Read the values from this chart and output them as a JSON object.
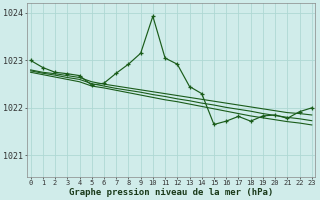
{
  "background_color": "#d0ecea",
  "grid_color": "#afd8d4",
  "line_color": "#1a5c1a",
  "ylabel_values": [
    1021,
    1022,
    1023,
    1024
  ],
  "xlabel_values": [
    0,
    1,
    2,
    3,
    4,
    5,
    6,
    7,
    8,
    9,
    10,
    11,
    12,
    13,
    14,
    15,
    16,
    17,
    18,
    19,
    20,
    21,
    22,
    23
  ],
  "xlabel_label": "Graphe pression niveau de la mer (hPa)",
  "ylim": [
    1020.55,
    1024.2
  ],
  "xlim": [
    -0.3,
    23.3
  ],
  "main_line": [
    1023.0,
    1022.85,
    1022.75,
    1022.72,
    1022.68,
    1022.48,
    1022.52,
    1022.73,
    1022.92,
    1023.15,
    1023.93,
    1023.05,
    1022.92,
    1022.45,
    1022.3,
    1021.65,
    1021.72,
    1021.82,
    1021.72,
    1021.83,
    1021.85,
    1021.78,
    1021.92,
    1022.0
  ],
  "trend_lines": [
    [
      1022.8,
      1022.75,
      1022.72,
      1022.68,
      1022.64,
      1022.55,
      1022.5,
      1022.46,
      1022.42,
      1022.38,
      1022.34,
      1022.3,
      1022.26,
      1022.22,
      1022.18,
      1022.14,
      1022.1,
      1022.06,
      1022.02,
      1021.98,
      1021.94,
      1021.9,
      1021.88,
      1021.85
    ],
    [
      1022.78,
      1022.73,
      1022.69,
      1022.64,
      1022.6,
      1022.51,
      1022.46,
      1022.41,
      1022.37,
      1022.33,
      1022.28,
      1022.24,
      1022.19,
      1022.15,
      1022.1,
      1022.06,
      1022.01,
      1021.97,
      1021.93,
      1021.88,
      1021.84,
      1021.8,
      1021.77,
      1021.73
    ],
    [
      1022.75,
      1022.7,
      1022.65,
      1022.6,
      1022.55,
      1022.46,
      1022.42,
      1022.37,
      1022.32,
      1022.27,
      1022.22,
      1022.17,
      1022.13,
      1022.08,
      1022.03,
      1021.98,
      1021.93,
      1021.88,
      1021.83,
      1021.79,
      1021.75,
      1021.71,
      1021.68,
      1021.64
    ]
  ],
  "ylabel_fontsize": 6,
  "xlabel_fontsize": 5,
  "label_fontsize": 6.5
}
